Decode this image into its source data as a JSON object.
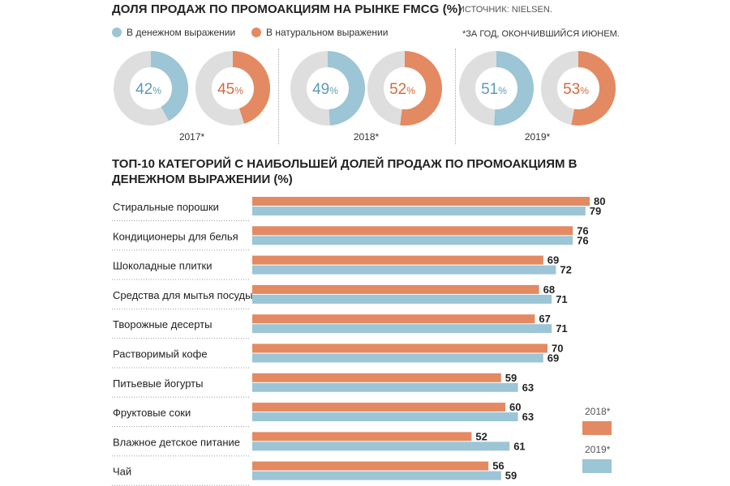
{
  "header": {
    "title": "ДОЛЯ ПРОДАЖ ПО ПРОМОАКЦИЯМ НА РЫНКЕ FMCG (%)",
    "source": "ИСТОЧНИК: NIELSEN.",
    "footnote": "*ЗА ГОД, ОКОНЧИВШИЙСЯ ИЮНЕМ."
  },
  "legend": {
    "money": "В денежном выражении",
    "natural": "В натуральном выражении"
  },
  "colors": {
    "blue": "#9cc5d6",
    "orange": "#e38a62",
    "grey": "#dedede",
    "blue_text": "#5e9ab5",
    "orange_text": "#d36b3c"
  },
  "bars_title": "ТОП-10 КАТЕГОРИЙ С НАИБОЛЬШЕЙ ДОЛЕЙ ПРОДАЖ ПО ПРОМОАКЦИЯМ В ДЕНЕЖНОМ ВЫРАЖЕНИИ (%)",
  "chart_data": [
    {
      "type": "pie",
      "variant": "donut",
      "groups": [
        {
          "year": "2017*",
          "money": 42,
          "natural": 45
        },
        {
          "year": "2018*",
          "money": 49,
          "natural": 52
        },
        {
          "year": "2019*",
          "money": 51,
          "natural": 53
        }
      ],
      "unit": "%"
    },
    {
      "type": "bar",
      "orientation": "horizontal",
      "categories": [
        "Стиральные порошки",
        "Кондиционеры для белья",
        "Шоколадные плитки",
        "Средства для мытья посуды",
        "Творожные десерты",
        "Растворимый кофе",
        "Питьевые йогурты",
        "Фруктовые соки",
        "Влажное детское питание",
        "Чай"
      ],
      "series": [
        {
          "name": "2018*",
          "values": [
            80,
            76,
            69,
            68,
            67,
            70,
            59,
            60,
            52,
            56
          ]
        },
        {
          "name": "2019*",
          "values": [
            79,
            76,
            72,
            71,
            71,
            69,
            63,
            63,
            61,
            59
          ]
        }
      ],
      "xlim": [
        0,
        80
      ],
      "legend_position": "bottom-right"
    }
  ]
}
